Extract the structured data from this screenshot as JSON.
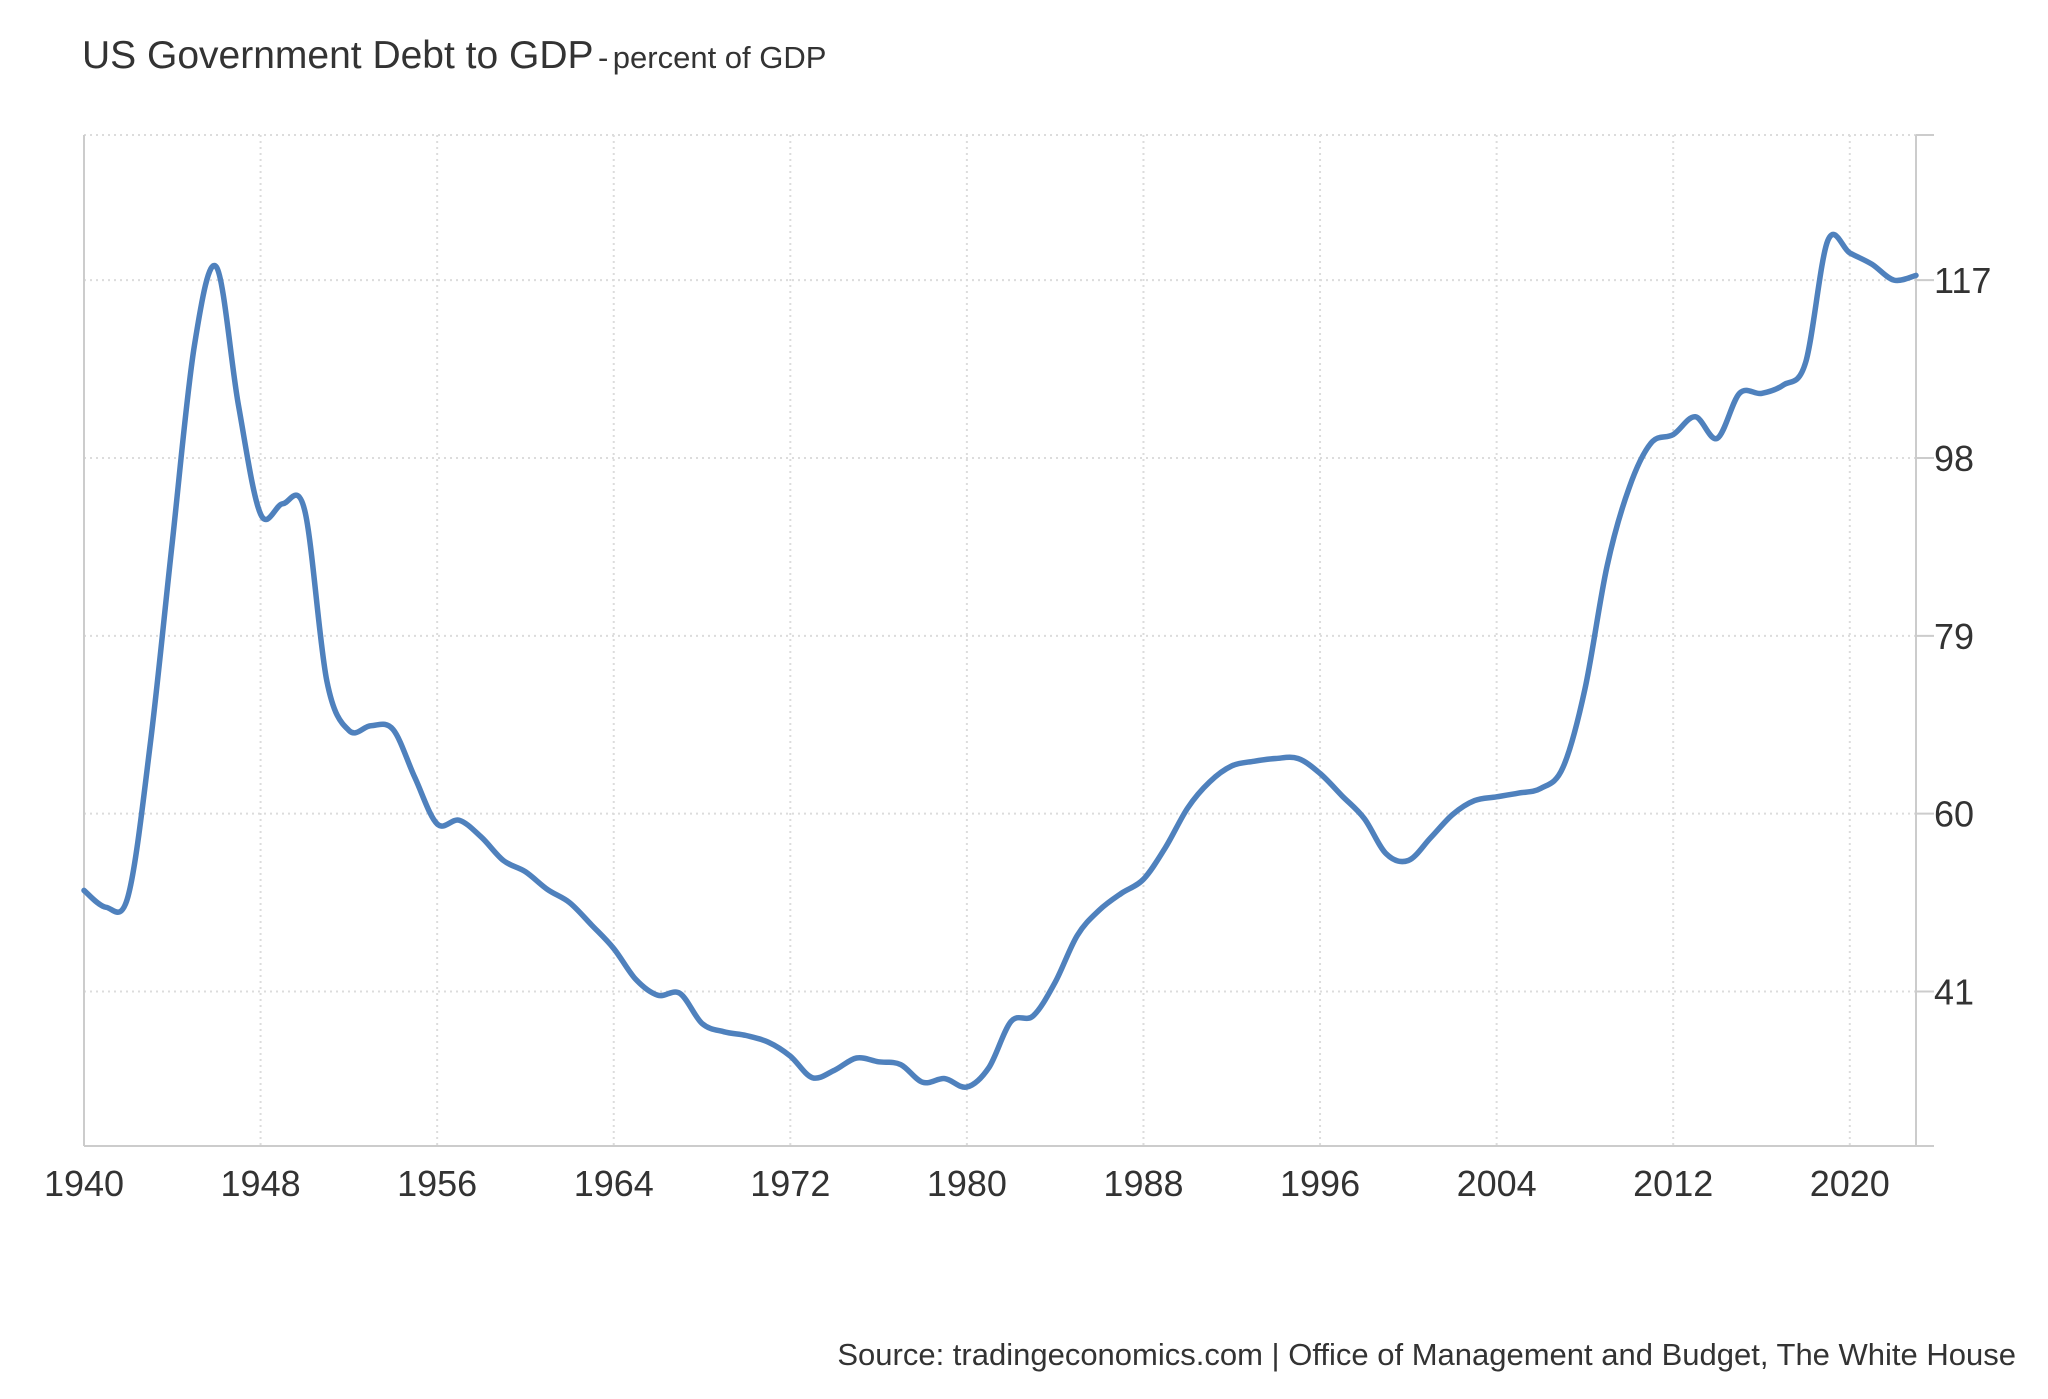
{
  "chart_data": {
    "type": "line",
    "title": "US Government Debt to GDP",
    "title_separator": "-",
    "subtitle": "percent of GDP",
    "source": "Source: tradingeconomics.com | Office of Management and Budget, The White House",
    "xlim": [
      1940,
      2023
    ],
    "ylim": [
      24.5,
      132.5
    ],
    "x_ticks": [
      1940,
      1948,
      1956,
      1964,
      1972,
      1980,
      1988,
      1996,
      2004,
      2012,
      2020
    ],
    "y_ticks": [
      41,
      60,
      79,
      98,
      117
    ],
    "y_axis_position": "right",
    "grid": true,
    "grid_style": "dotted",
    "line_color": "#4f81bd",
    "series": [
      {
        "x": [
          1940,
          1941,
          1942,
          1943,
          1944,
          1945,
          1946,
          1947,
          1948,
          1949,
          1950,
          1951,
          1952,
          1953,
          1954,
          1955,
          1956,
          1957,
          1958,
          1959,
          1960,
          1961,
          1962,
          1963,
          1964,
          1965,
          1966,
          1967,
          1968,
          1969,
          1970,
          1971,
          1972,
          1973,
          1974,
          1975,
          1976,
          1977,
          1978,
          1979,
          1980,
          1981,
          1982,
          1983,
          1984,
          1985,
          1986,
          1987,
          1988,
          1989,
          1990,
          1991,
          1992,
          1993,
          1994,
          1995,
          1996,
          1997,
          1998,
          1999,
          2000,
          2001,
          2002,
          2003,
          2004,
          2005,
          2006,
          2007,
          2008,
          2009,
          2010,
          2011,
          2012,
          2013,
          2014,
          2015,
          2016,
          2017,
          2018,
          2019,
          2020,
          2021,
          2022,
          2023
        ],
        "values": [
          51.8,
          50.0,
          51.2,
          67.4,
          89.0,
          110.0,
          118.4,
          103.6,
          92.0,
          93.1,
          92.4,
          74.2,
          68.9,
          69.4,
          69.0,
          63.8,
          58.9,
          59.3,
          57.5,
          55.0,
          53.8,
          51.9,
          50.5,
          48.1,
          45.6,
          42.3,
          40.6,
          40.8,
          37.6,
          36.7,
          36.3,
          35.6,
          34.1,
          31.8,
          32.6,
          33.9,
          33.5,
          33.2,
          31.3,
          31.7,
          30.8,
          32.9,
          37.8,
          38.4,
          42.0,
          47.0,
          49.7,
          51.5,
          53.0,
          56.4,
          60.6,
          63.4,
          65.1,
          65.6,
          65.9,
          65.9,
          64.3,
          61.9,
          59.5,
          55.7,
          55.0,
          57.4,
          59.9,
          61.4,
          61.8,
          62.2,
          62.7,
          64.9,
          73.3,
          86.4,
          94.8,
          99.6,
          100.5,
          102.4,
          100.1,
          104.9,
          104.9,
          105.8,
          108.2,
          121.2,
          119.9,
          118.7,
          117.0,
          117.5
        ]
      }
    ]
  }
}
